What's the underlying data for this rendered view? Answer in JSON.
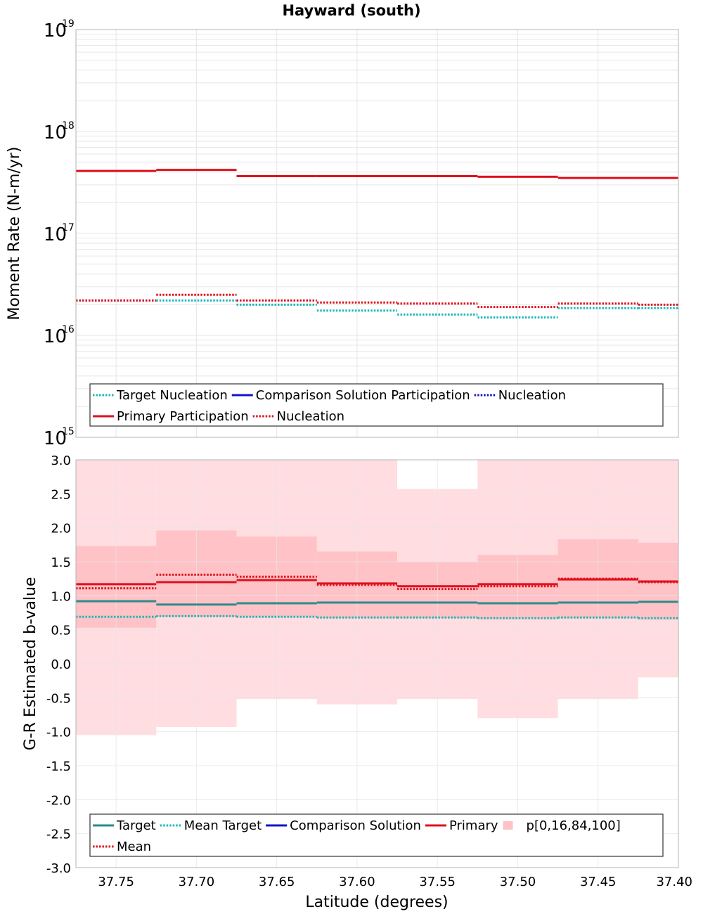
{
  "title": "Hayward (south)",
  "colors": {
    "target": "#2a8c8c",
    "target_dotted": "#1fb8b8",
    "comparison": "#1414c8",
    "primary": "#e0101e",
    "band_outer": "#ffdde0",
    "band_inner": "#ffc2c6",
    "grid": "#e6e6e6",
    "frame": "#b4b4b4"
  },
  "chart_data": [
    {
      "type": "line",
      "step": true,
      "title": "Hayward (south)",
      "ylabel": "Moment Rate (N-m/yr)",
      "yscale": "log",
      "ylim": [
        1000000000000000.0,
        1e+19
      ],
      "xlim": [
        37.775,
        37.4
      ],
      "x_reversed": true,
      "y_tick_labels": [
        {
          "value": 1000000000000000.0,
          "base": "10",
          "exp": "15"
        },
        {
          "value": 1e+16,
          "base": "10",
          "exp": "16"
        },
        {
          "value": 1e+17,
          "base": "10",
          "exp": "17"
        },
        {
          "value": 1e+18,
          "base": "10",
          "exp": "18"
        },
        {
          "value": 1e+19,
          "base": "10",
          "exp": "19"
        }
      ],
      "grid": true,
      "legend_position": "bottom",
      "bin_edges": [
        37.775,
        37.725,
        37.675,
        37.625,
        37.575,
        37.525,
        37.475,
        37.425,
        37.4
      ],
      "series": [
        {
          "name": "Target Nucleation",
          "style": "dotted",
          "color": "#1fb8b8",
          "values": [
            2.2e+16,
            2.2e+16,
            2e+16,
            1.75e+16,
            1.6e+16,
            1.5e+16,
            1.85e+16,
            1.85e+16
          ]
        },
        {
          "name": "Primary Participation",
          "style": "solid",
          "color": "#e0101e",
          "values": [
            4.1e+17,
            4.2e+17,
            3.65e+17,
            3.65e+17,
            3.65e+17,
            3.6e+17,
            3.5e+17,
            3.5e+17
          ]
        },
        {
          "name": "Nucleation",
          "style": "dotted",
          "color": "#e0101e",
          "values": [
            2.2e+16,
            2.5e+16,
            2.2e+16,
            2.1e+16,
            2.05e+16,
            1.9e+16,
            2.05e+16,
            2e+16
          ]
        }
      ],
      "legend": [
        [
          {
            "label": "Target Nucleation",
            "style": "dotted",
            "color": "#1fb8b8"
          },
          {
            "label": "Comparison Solution Participation",
            "style": "solid",
            "color": "#1414c8"
          },
          {
            "label": "Nucleation",
            "style": "dotted",
            "color": "#1414c8"
          }
        ],
        [
          {
            "label": "Primary Participation",
            "style": "solid",
            "color": "#e0101e"
          },
          {
            "label": "Nucleation",
            "style": "dotted",
            "color": "#e0101e"
          }
        ]
      ]
    },
    {
      "type": "line",
      "step": true,
      "xlabel": "Latitude (degrees)",
      "ylabel": "G-R Estimated b-value",
      "ylim": [
        -3.0,
        3.0
      ],
      "xlim": [
        37.775,
        37.4
      ],
      "x_reversed": true,
      "y_ticks": [
        "-3.0",
        "-2.5",
        "-2.0",
        "-1.5",
        "-1.0",
        "-0.5",
        "0.0",
        "0.5",
        "1.0",
        "1.5",
        "2.0",
        "2.5",
        "3.0"
      ],
      "x_ticks": [
        "37.75",
        "37.70",
        "37.65",
        "37.60",
        "37.55",
        "37.50",
        "37.45",
        "37.40"
      ],
      "grid": true,
      "legend_position": "bottom",
      "bin_edges": [
        37.775,
        37.725,
        37.675,
        37.625,
        37.575,
        37.525,
        37.475,
        37.425,
        37.4
      ],
      "band": {
        "name": "p[0,16,84,100]",
        "p0": [
          -1.05,
          -0.93,
          -0.52,
          -0.6,
          -0.52,
          -0.8,
          -0.52,
          -0.2
        ],
        "p16": [
          0.53,
          0.69,
          0.69,
          0.67,
          0.67,
          0.66,
          0.67,
          0.65
        ],
        "p84": [
          1.73,
          1.96,
          1.87,
          1.65,
          1.5,
          1.6,
          1.83,
          1.78
        ],
        "p100": [
          3.0,
          3.0,
          3.0,
          3.0,
          2.57,
          3.0,
          3.0,
          3.0
        ]
      },
      "series": [
        {
          "name": "Target",
          "style": "solid",
          "color": "#2a8c8c",
          "values": [
            0.92,
            0.87,
            0.89,
            0.9,
            0.9,
            0.89,
            0.9,
            0.91
          ]
        },
        {
          "name": "Mean Target",
          "style": "dotted",
          "color": "#1fb8b8",
          "values": [
            0.69,
            0.7,
            0.69,
            0.68,
            0.68,
            0.67,
            0.68,
            0.67
          ]
        },
        {
          "name": "Primary",
          "style": "solid",
          "color": "#e0101e",
          "values": [
            1.17,
            1.2,
            1.23,
            1.18,
            1.14,
            1.17,
            1.24,
            1.21
          ]
        },
        {
          "name": "Mean",
          "style": "dotted",
          "color": "#e0101e",
          "values": [
            1.11,
            1.31,
            1.28,
            1.16,
            1.1,
            1.14,
            1.25,
            1.2
          ]
        }
      ],
      "legend": [
        [
          {
            "label": "Target",
            "style": "solid",
            "color": "#2a8c8c"
          },
          {
            "label": "Mean Target",
            "style": "dotted",
            "color": "#1fb8b8"
          },
          {
            "label": "Comparison Solution",
            "style": "solid",
            "color": "#1414c8"
          },
          {
            "label": "Primary",
            "style": "solid",
            "color": "#e0101e"
          },
          {
            "label": "p[0,16,84,100]",
            "style": "patch",
            "color": "#ffc2c6"
          }
        ],
        [
          {
            "label": "Mean",
            "style": "dotted",
            "color": "#e0101e"
          }
        ]
      ]
    }
  ]
}
